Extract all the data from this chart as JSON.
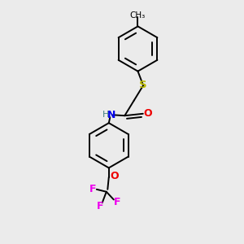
{
  "background_color": "#ebebeb",
  "bond_color": "#000000",
  "atom_colors": {
    "S": "#b8b800",
    "N": "#0000ee",
    "O": "#ee0000",
    "F": "#ee00ee",
    "H": "#408080",
    "C": "#000000"
  },
  "lw": 1.4,
  "ring_r": 0.092,
  "fig_bg": "#ebebeb"
}
